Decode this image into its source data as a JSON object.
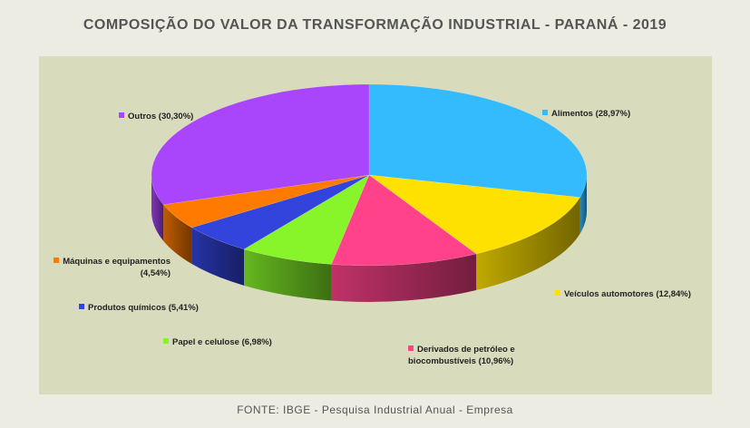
{
  "chart_data": {
    "type": "pie3d",
    "title": "COMPOSIÇÃO DO VALOR DA TRANSFORMAÇÃO INDUSTRIAL - PARANÁ - 2019",
    "source": "FONTE: IBGE - Pesquisa Industrial Anual - Empresa",
    "categories": [
      "Alimentos",
      "Veículos automotores",
      "Derivados de petróleo e biocombustíveis",
      "Papel e celulose",
      "Produtos químicos",
      "Máquinas e equipamentos",
      "Outros"
    ],
    "values": [
      28.97,
      12.84,
      10.96,
      6.98,
      5.41,
      4.54,
      30.3
    ],
    "value_labels": [
      "(28,97%)",
      "(12,84%)",
      "(10,96%)",
      "(6,98%)",
      "(5,41%)",
      "(4,54%)",
      "(30,30%)"
    ],
    "colors": [
      "#33bbfd",
      "#ffe100",
      "#ff428a",
      "#87f52a",
      "#3344dd",
      "#ff7a00",
      "#a946fb"
    ]
  }
}
